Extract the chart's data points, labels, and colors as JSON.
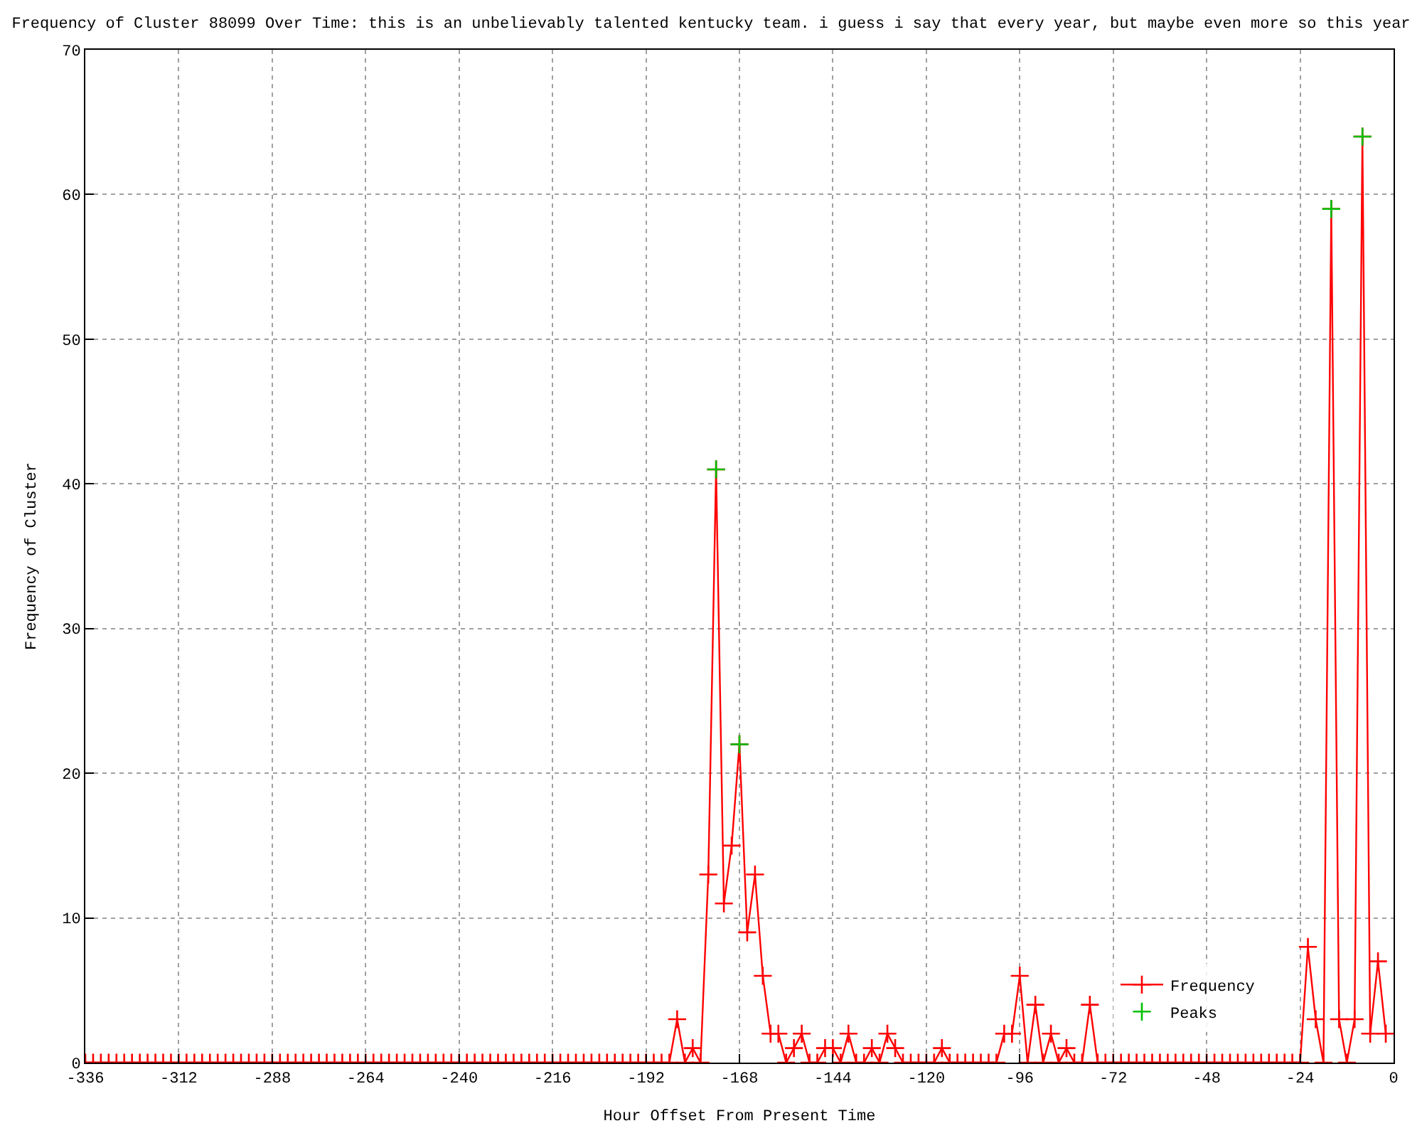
{
  "chart_data": {
    "type": "line",
    "title": "Frequency of Cluster 88099 Over Time: this is an unbelievably talented kentucky team. i guess i say that every year, but maybe even more so this year",
    "xlabel": "Hour Offset From Present Time",
    "ylabel": "Frequency of Cluster",
    "x": [
      -336,
      -334,
      -332,
      -330,
      -328,
      -326,
      -324,
      -322,
      -320,
      -318,
      -316,
      -314,
      -312,
      -310,
      -308,
      -306,
      -304,
      -302,
      -300,
      -298,
      -296,
      -294,
      -292,
      -290,
      -288,
      -286,
      -284,
      -282,
      -280,
      -278,
      -276,
      -274,
      -272,
      -270,
      -268,
      -266,
      -264,
      -262,
      -260,
      -258,
      -256,
      -254,
      -252,
      -250,
      -248,
      -246,
      -244,
      -242,
      -240,
      -238,
      -236,
      -234,
      -232,
      -230,
      -228,
      -226,
      -224,
      -222,
      -220,
      -218,
      -216,
      -214,
      -212,
      -210,
      -208,
      -206,
      -204,
      -202,
      -200,
      -198,
      -196,
      -194,
      -192,
      -190,
      -188,
      -186,
      -184,
      -182,
      -180,
      -178,
      -176,
      -174,
      -172,
      -170,
      -168,
      -166,
      -164,
      -162,
      -160,
      -158,
      -156,
      -154,
      -152,
      -150,
      -148,
      -146,
      -144,
      -142,
      -140,
      -138,
      -136,
      -134,
      -132,
      -130,
      -128,
      -126,
      -124,
      -122,
      -120,
      -118,
      -116,
      -114,
      -112,
      -110,
      -108,
      -106,
      -104,
      -102,
      -100,
      -98,
      -96,
      -94,
      -92,
      -90,
      -88,
      -86,
      -84,
      -82,
      -80,
      -78,
      -76,
      -74,
      -72,
      -70,
      -68,
      -66,
      -64,
      -62,
      -60,
      -58,
      -56,
      -54,
      -52,
      -50,
      -48,
      -46,
      -44,
      -42,
      -40,
      -38,
      -36,
      -34,
      -32,
      -30,
      -28,
      -26,
      -24,
      -22,
      -20,
      -18,
      -16,
      -14,
      -12,
      -10,
      -8,
      -6,
      -4,
      -2
    ],
    "series": [
      {
        "name": "Frequency",
        "color": "#ff0000",
        "marker": "cross",
        "line_style": "solid",
        "values": [
          0,
          0,
          0,
          0,
          0,
          0,
          0,
          0,
          0,
          0,
          0,
          0,
          0,
          0,
          0,
          0,
          0,
          0,
          0,
          0,
          0,
          0,
          0,
          0,
          0,
          0,
          0,
          0,
          0,
          0,
          0,
          0,
          0,
          0,
          0,
          0,
          0,
          0,
          0,
          0,
          0,
          0,
          0,
          0,
          0,
          0,
          0,
          0,
          0,
          0,
          0,
          0,
          0,
          0,
          0,
          0,
          0,
          0,
          0,
          0,
          0,
          0,
          0,
          0,
          0,
          0,
          0,
          0,
          0,
          0,
          0,
          0,
          0,
          0,
          0,
          0,
          3,
          0,
          1,
          0,
          13,
          41,
          11,
          15,
          22,
          9,
          13,
          6,
          2,
          2,
          0,
          1,
          2,
          0,
          0,
          1,
          1,
          0,
          2,
          0,
          0,
          1,
          0,
          2,
          1,
          0,
          0,
          0,
          0,
          0,
          1,
          0,
          0,
          0,
          0,
          0,
          0,
          0,
          2,
          2,
          6,
          0,
          4,
          0,
          2,
          0,
          1,
          0,
          0,
          4,
          0,
          0,
          0,
          0,
          0,
          0,
          0,
          0,
          0,
          0,
          0,
          0,
          0,
          0,
          0,
          0,
          0,
          0,
          0,
          0,
          0,
          0,
          0,
          0,
          0,
          0,
          0,
          8,
          3,
          0,
          59,
          3,
          0,
          3,
          64,
          2,
          7,
          2
        ]
      },
      {
        "name": "Peaks",
        "type": "scatter",
        "color": "#00c000",
        "marker": "cross",
        "x": [
          -174,
          -168,
          -16,
          -8
        ],
        "values": [
          41,
          22,
          59,
          64
        ]
      }
    ],
    "xlim": [
      -336,
      0
    ],
    "xticks": [
      -336,
      -312,
      -288,
      -264,
      -240,
      -216,
      -192,
      -168,
      -144,
      -120,
      -96,
      -72,
      -48,
      -24,
      0
    ],
    "ylim": [
      0,
      70
    ],
    "yticks": [
      0,
      10,
      20,
      30,
      40,
      50,
      60,
      70
    ],
    "grid": true,
    "legend": "bottom right"
  }
}
